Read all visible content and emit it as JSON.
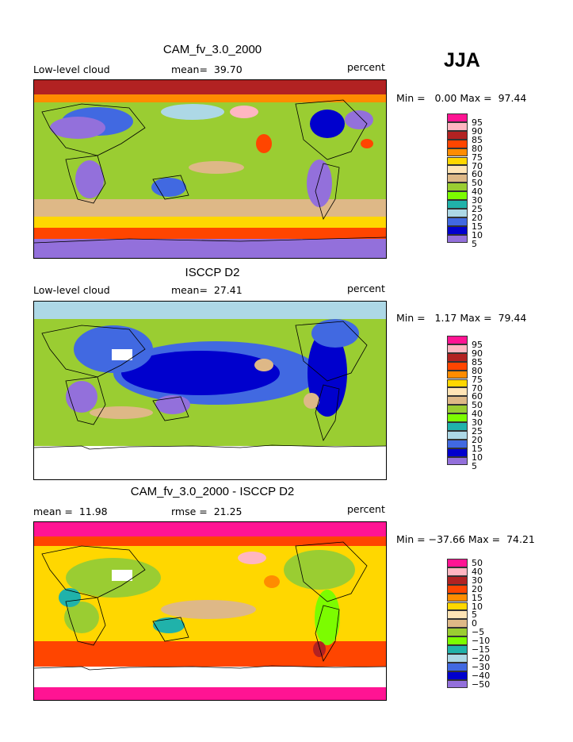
{
  "season": "JJA",
  "panels": [
    {
      "title": "CAM_fv_3.0_2000",
      "left_label": "Low-level cloud",
      "mean_label": "mean=  39.70",
      "units": "percent",
      "minmax": "Min =   0.00 Max =  97.44",
      "legend": [
        "95",
        "90",
        "85",
        "80",
        "75",
        "70",
        "60",
        "50",
        "40",
        "30",
        "25",
        "20",
        "15",
        "10",
        "5"
      ]
    },
    {
      "title": "ISCCP D2",
      "left_label": "Low-level cloud",
      "mean_label": "mean=  27.41",
      "units": "percent",
      "minmax": "Min =   1.17 Max =  79.44",
      "legend": [
        "95",
        "90",
        "85",
        "80",
        "75",
        "70",
        "60",
        "50",
        "40",
        "30",
        "25",
        "20",
        "15",
        "10",
        "5"
      ]
    },
    {
      "title": "CAM_fv_3.0_2000 - ISCCP D2",
      "left_label": "mean =  11.98",
      "mean_label": "rmse =  21.25",
      "units": "percent",
      "minmax": "Min = −37.66 Max =  74.21",
      "legend": [
        "50",
        "40",
        "30",
        "20",
        "15",
        "10",
        "5",
        "0",
        "−5",
        "−10",
        "−15",
        "−20",
        "−30",
        "−40",
        "−50"
      ]
    }
  ],
  "colors": {
    "scale": [
      "#ff1493",
      "#ffb6c1",
      "#b22222",
      "#ff4500",
      "#ff8c00",
      "#ffd700",
      "#ffe4b5",
      "#deb887",
      "#9acd32",
      "#7cfc00",
      "#20b2aa",
      "#add8e6",
      "#4169e1",
      "#0000cd",
      "#9370db"
    ]
  }
}
